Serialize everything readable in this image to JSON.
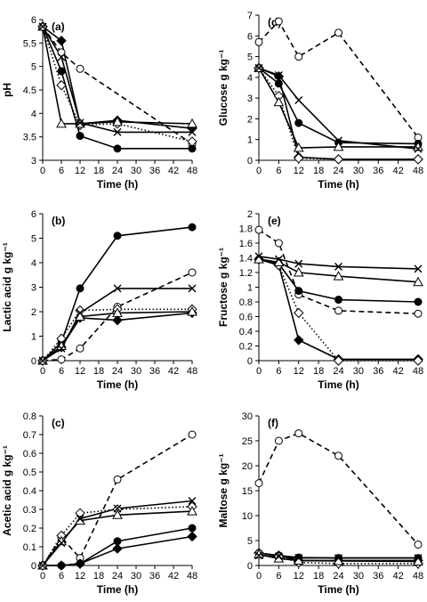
{
  "chart_data": [
    {
      "panel": "(a)",
      "type": "line",
      "xlabel": "Time (h)",
      "ylabel": "pH",
      "xlim": [
        0,
        48
      ],
      "ylim": [
        3,
        6
      ],
      "xticks": [
        "0",
        "6",
        "12",
        "18",
        "24",
        "30",
        "36",
        "42",
        "48"
      ],
      "yticks": [
        "3",
        "3.5",
        "4",
        "4.5",
        "5",
        "5.5",
        "6"
      ],
      "series": [
        {
          "marker": "open-circle",
          "line": "dashed",
          "x": [
            0,
            6,
            12,
            24,
            48
          ],
          "y": [
            5.85,
            5.3,
            4.95,
            null,
            3.35
          ]
        },
        {
          "marker": "filled-circle",
          "line": "solid",
          "x": [
            0,
            6,
            12,
            24,
            48
          ],
          "y": [
            5.85,
            4.9,
            3.52,
            3.25,
            3.25
          ]
        },
        {
          "marker": "filled-diamond",
          "line": "solid",
          "x": [
            0,
            6,
            12,
            24,
            48
          ],
          "y": [
            5.85,
            5.55,
            3.78,
            3.85,
            3.68
          ]
        },
        {
          "marker": "open-diamond",
          "line": "dotted",
          "x": [
            0,
            6,
            12,
            24,
            48
          ],
          "y": [
            5.85,
            4.6,
            3.75,
            3.78,
            3.4
          ]
        },
        {
          "marker": "open-triangle",
          "line": "solid",
          "x": [
            0,
            6,
            12,
            24,
            48
          ],
          "y": [
            5.85,
            3.78,
            3.78,
            3.82,
            3.78
          ]
        },
        {
          "marker": "cross",
          "line": "solid",
          "x": [
            0,
            6,
            12,
            24,
            48
          ],
          "y": [
            5.85,
            5.2,
            3.8,
            3.6,
            3.6
          ]
        }
      ]
    },
    {
      "panel": "(b)",
      "type": "line",
      "xlabel": "Time (h)",
      "ylabel": "Lactic acid g kg⁻¹",
      "xlim": [
        0,
        48
      ],
      "ylim": [
        0,
        6
      ],
      "xticks": [
        "0",
        "6",
        "12",
        "18",
        "24",
        "30",
        "36",
        "42",
        "48"
      ],
      "yticks": [
        "0",
        "1",
        "2",
        "3",
        "4",
        "5",
        "6"
      ],
      "series": [
        {
          "marker": "open-circle",
          "line": "dashed",
          "x": [
            0,
            6,
            12,
            24,
            48
          ],
          "y": [
            0,
            0.05,
            0.5,
            2.2,
            3.6
          ]
        },
        {
          "marker": "filled-circle",
          "line": "solid",
          "x": [
            0,
            6,
            12,
            24,
            48
          ],
          "y": [
            0,
            0.75,
            2.95,
            5.1,
            5.45
          ]
        },
        {
          "marker": "filled-diamond",
          "line": "solid",
          "x": [
            0,
            6,
            12,
            24,
            48
          ],
          "y": [
            0,
            0.55,
            1.75,
            1.65,
            1.95
          ]
        },
        {
          "marker": "open-diamond",
          "line": "dotted",
          "x": [
            0,
            6,
            12,
            24,
            48
          ],
          "y": [
            0,
            0.9,
            2.05,
            2.1,
            2.1
          ]
        },
        {
          "marker": "open-triangle",
          "line": "solid",
          "x": [
            0,
            6,
            12,
            24,
            48
          ],
          "y": [
            0,
            0.6,
            1.8,
            1.95,
            2.0
          ]
        },
        {
          "marker": "cross",
          "line": "solid",
          "x": [
            0,
            6,
            12,
            24,
            48
          ],
          "y": [
            0,
            0.5,
            1.95,
            2.95,
            2.95
          ]
        }
      ]
    },
    {
      "panel": "(c)",
      "type": "line",
      "xlabel": "Time (h)",
      "ylabel": "Acetic acid g kg⁻¹",
      "xlim": [
        0,
        48
      ],
      "ylim": [
        0,
        0.8
      ],
      "xticks": [
        "0",
        "6",
        "12",
        "18",
        "24",
        "30",
        "36",
        "42",
        "48"
      ],
      "yticks": [
        "0",
        "0.1",
        "0.2",
        "0.3",
        "0.4",
        "0.5",
        "0.6",
        "0.7",
        "0.8"
      ],
      "series": [
        {
          "marker": "open-circle",
          "line": "dashed",
          "x": [
            0,
            6,
            12,
            24,
            48
          ],
          "y": [
            0,
            0.15,
            0.04,
            0.46,
            0.7
          ]
        },
        {
          "marker": "filled-circle",
          "line": "solid",
          "x": [
            0,
            6,
            12,
            24,
            48
          ],
          "y": [
            0,
            0,
            0.01,
            0.13,
            0.2
          ]
        },
        {
          "marker": "filled-diamond",
          "line": "solid",
          "x": [
            0,
            6,
            12,
            24,
            48
          ],
          "y": [
            0,
            0,
            0.01,
            0.09,
            0.155
          ]
        },
        {
          "marker": "open-diamond",
          "line": "dotted",
          "x": [
            0,
            6,
            12,
            24,
            48
          ],
          "y": [
            0,
            0.16,
            0.28,
            0.3,
            0.315
          ]
        },
        {
          "marker": "open-triangle",
          "line": "solid",
          "x": [
            0,
            6,
            12,
            24,
            48
          ],
          "y": [
            0,
            0.13,
            0.24,
            0.27,
            0.29
          ]
        },
        {
          "marker": "cross",
          "line": "solid",
          "x": [
            0,
            6,
            12,
            24,
            48
          ],
          "y": [
            0,
            0.12,
            0.25,
            0.305,
            0.345
          ]
        }
      ]
    },
    {
      "panel": "(d)",
      "type": "line",
      "xlabel": "Time (h)",
      "ylabel": "Glucose g kg⁻¹",
      "xlim": [
        0,
        48
      ],
      "ylim": [
        0,
        7
      ],
      "xticks": [
        "0",
        "6",
        "12",
        "18",
        "24",
        "30",
        "36",
        "42",
        "48"
      ],
      "yticks": [
        "0",
        "1",
        "2",
        "3",
        "4",
        "5",
        "6",
        "7"
      ],
      "series": [
        {
          "marker": "open-circle",
          "line": "dashed",
          "x": [
            0,
            6,
            12,
            24,
            48
          ],
          "y": [
            5.7,
            6.7,
            5.0,
            6.15,
            1.1
          ]
        },
        {
          "marker": "filled-circle",
          "line": "solid",
          "x": [
            0,
            6,
            12,
            24,
            48
          ],
          "y": [
            4.45,
            3.7,
            1.8,
            0.85,
            0.8
          ]
        },
        {
          "marker": "filled-diamond",
          "line": "solid",
          "x": [
            0,
            6,
            12,
            24,
            48
          ],
          "y": [
            4.45,
            4.05,
            0.15,
            0.05,
            0.05
          ]
        },
        {
          "marker": "open-diamond",
          "line": "dotted",
          "x": [
            0,
            6,
            12,
            24,
            48
          ],
          "y": [
            4.45,
            3.1,
            0.1,
            0.05,
            0.05
          ]
        },
        {
          "marker": "open-triangle",
          "line": "solid",
          "x": [
            0,
            6,
            12,
            24,
            48
          ],
          "y": [
            4.45,
            2.8,
            0.6,
            0.65,
            0.65
          ]
        },
        {
          "marker": "cross",
          "line": "solid",
          "x": [
            0,
            6,
            12,
            24,
            48
          ],
          "y": [
            4.45,
            4.1,
            2.9,
            0.95,
            0.55
          ]
        }
      ]
    },
    {
      "panel": "(e)",
      "type": "line",
      "xlabel": "Time (h)",
      "ylabel": "Fructose g kg⁻¹",
      "xlim": [
        0,
        48
      ],
      "ylim": [
        0,
        2
      ],
      "xticks": [
        "0",
        "6",
        "12",
        "18",
        "24",
        "30",
        "36",
        "42",
        "48"
      ],
      "yticks": [
        "0",
        "0.2",
        "0.4",
        "0.6",
        "0.8",
        "1",
        "1.2",
        "1.4",
        "1.6",
        "1.8",
        "2"
      ],
      "series": [
        {
          "marker": "open-circle",
          "line": "dashed",
          "x": [
            0,
            6,
            12,
            24,
            48
          ],
          "y": [
            1.78,
            1.6,
            0.9,
            0.68,
            0.64
          ]
        },
        {
          "marker": "filled-circle",
          "line": "solid",
          "x": [
            0,
            6,
            12,
            24,
            48
          ],
          "y": [
            1.38,
            1.32,
            0.95,
            0.83,
            0.8
          ]
        },
        {
          "marker": "filled-diamond",
          "line": "solid",
          "x": [
            0,
            6,
            12,
            24,
            48
          ],
          "y": [
            1.38,
            1.3,
            0.28,
            0.02,
            0.02
          ]
        },
        {
          "marker": "open-diamond",
          "line": "dotted",
          "x": [
            0,
            6,
            12,
            24,
            48
          ],
          "y": [
            1.38,
            1.3,
            0.65,
            0,
            0
          ]
        },
        {
          "marker": "open-triangle",
          "line": "solid",
          "x": [
            0,
            6,
            12,
            24,
            48
          ],
          "y": [
            1.38,
            1.34,
            1.2,
            1.15,
            1.07
          ]
        },
        {
          "marker": "cross",
          "line": "solid",
          "x": [
            0,
            6,
            12,
            24,
            48
          ],
          "y": [
            1.42,
            1.38,
            1.32,
            1.28,
            1.25
          ]
        }
      ]
    },
    {
      "panel": "(f)",
      "type": "line",
      "xlabel": "Time (h)",
      "ylabel": "Maltose g kg⁻¹",
      "xlim": [
        0,
        48
      ],
      "ylim": [
        0,
        30
      ],
      "xticks": [
        "0",
        "6",
        "12",
        "18",
        "24",
        "30",
        "36",
        "42",
        "48"
      ],
      "yticks": [
        "0",
        "5",
        "10",
        "15",
        "20",
        "25",
        "30"
      ],
      "series": [
        {
          "marker": "open-circle",
          "line": "dashed",
          "x": [
            0,
            6,
            12,
            24,
            48
          ],
          "y": [
            16.5,
            25.0,
            26.5,
            22.0,
            4.2
          ]
        },
        {
          "marker": "filled-circle",
          "line": "solid",
          "x": [
            0,
            6,
            12,
            24,
            48
          ],
          "y": [
            2.5,
            2.0,
            1.6,
            1.5,
            1.5
          ]
        },
        {
          "marker": "filled-diamond",
          "line": "solid",
          "x": [
            0,
            6,
            12,
            24,
            48
          ],
          "y": [
            2.5,
            2.0,
            1.0,
            1.0,
            1.0
          ]
        },
        {
          "marker": "open-diamond",
          "line": "dotted",
          "x": [
            0,
            6,
            12,
            24,
            48
          ],
          "y": [
            2.5,
            1.8,
            0.6,
            0.4,
            0.4
          ]
        },
        {
          "marker": "open-triangle",
          "line": "solid",
          "x": [
            0,
            6,
            12,
            24,
            48
          ],
          "y": [
            2.2,
            1.4,
            1.0,
            0.9,
            0.8
          ]
        },
        {
          "marker": "cross",
          "line": "solid",
          "x": [
            0,
            6,
            12,
            24,
            48
          ],
          "y": [
            2.0,
            1.8,
            1.5,
            1.5,
            1.5
          ]
        }
      ]
    }
  ]
}
